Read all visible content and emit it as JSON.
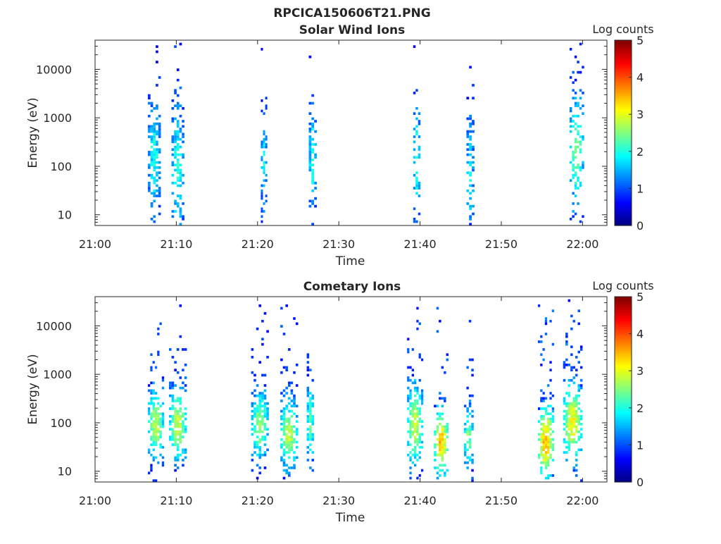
{
  "figure": {
    "title": "RPCICA150606T21.PNG"
  },
  "colorbar": {
    "label": "Log counts",
    "ticks": [
      "0",
      "1",
      "2",
      "3",
      "4",
      "5"
    ],
    "range": [
      0,
      5
    ],
    "colormap": "jet"
  },
  "chart_data": [
    {
      "type": "heatmap",
      "title": "Solar Wind Ions",
      "xlabel": "Time",
      "ylabel": "Energy (eV)",
      "x_ticks": [
        "21:00",
        "21:10",
        "21:20",
        "21:30",
        "21:40",
        "21:50",
        "22:00"
      ],
      "x_range_minutes": [
        0,
        63
      ],
      "y_ticks": [
        "10",
        "100",
        "1000",
        "10000"
      ],
      "y_scale": "log",
      "y_range": [
        6,
        40000
      ],
      "bursts": [
        {
          "center_minute": 7.3,
          "width": 1.6,
          "peak_energy_ev": 150,
          "peak_log_counts": 2.0,
          "spread": 2.3,
          "density": 0.65
        },
        {
          "center_minute": 10.2,
          "width": 1.6,
          "peak_energy_ev": 90,
          "peak_log_counts": 2.1,
          "spread": 2.6,
          "density": 0.6
        },
        {
          "center_minute": 20.8,
          "width": 0.8,
          "peak_energy_ev": 110,
          "peak_log_counts": 1.9,
          "spread": 2.0,
          "density": 0.5
        },
        {
          "center_minute": 26.8,
          "width": 1.0,
          "peak_energy_ev": 130,
          "peak_log_counts": 2.0,
          "spread": 2.2,
          "density": 0.55
        },
        {
          "center_minute": 39.6,
          "width": 0.9,
          "peak_energy_ev": 120,
          "peak_log_counts": 2.0,
          "spread": 2.4,
          "density": 0.5
        },
        {
          "center_minute": 46.2,
          "width": 1.0,
          "peak_energy_ev": 80,
          "peak_log_counts": 1.9,
          "spread": 2.2,
          "density": 0.5
        },
        {
          "center_minute": 59.3,
          "width": 1.8,
          "peak_energy_ev": 200,
          "peak_log_counts": 2.5,
          "spread": 2.0,
          "density": 0.55
        }
      ]
    },
    {
      "type": "heatmap",
      "title": "Cometary Ions",
      "xlabel": "Time",
      "ylabel": "Energy (eV)",
      "x_ticks": [
        "21:00",
        "21:10",
        "21:20",
        "21:30",
        "21:40",
        "21:50",
        "22:00"
      ],
      "x_range_minutes": [
        0,
        63
      ],
      "y_ticks": [
        "10",
        "100",
        "1000",
        "10000"
      ],
      "y_scale": "log",
      "y_range": [
        6,
        40000
      ],
      "bursts": [
        {
          "center_minute": 7.5,
          "width": 2.0,
          "peak_energy_ev": 90,
          "peak_log_counts": 2.8,
          "spread": 1.3,
          "density": 0.85
        },
        {
          "center_minute": 10.2,
          "width": 2.2,
          "peak_energy_ev": 90,
          "peak_log_counts": 2.9,
          "spread": 1.3,
          "density": 0.85
        },
        {
          "center_minute": 20.3,
          "width": 2.2,
          "peak_energy_ev": 90,
          "peak_log_counts": 2.6,
          "spread": 1.3,
          "density": 0.8
        },
        {
          "center_minute": 23.9,
          "width": 2.2,
          "peak_energy_ev": 60,
          "peak_log_counts": 2.8,
          "spread": 1.3,
          "density": 0.85
        },
        {
          "center_minute": 26.5,
          "width": 0.9,
          "peak_energy_ev": 100,
          "peak_log_counts": 2.4,
          "spread": 1.6,
          "density": 0.75
        },
        {
          "center_minute": 39.4,
          "width": 2.0,
          "peak_energy_ev": 90,
          "peak_log_counts": 2.9,
          "spread": 1.5,
          "density": 0.8
        },
        {
          "center_minute": 42.6,
          "width": 1.8,
          "peak_energy_ev": 40,
          "peak_log_counts": 3.4,
          "spread": 1.2,
          "density": 0.85
        },
        {
          "center_minute": 46.0,
          "width": 1.2,
          "peak_energy_ev": 50,
          "peak_log_counts": 2.5,
          "spread": 1.2,
          "density": 0.75
        },
        {
          "center_minute": 55.5,
          "width": 2.0,
          "peak_energy_ev": 40,
          "peak_log_counts": 3.5,
          "spread": 1.3,
          "density": 0.85
        },
        {
          "center_minute": 58.8,
          "width": 2.4,
          "peak_energy_ev": 100,
          "peak_log_counts": 3.1,
          "spread": 1.4,
          "density": 0.85
        }
      ]
    }
  ]
}
